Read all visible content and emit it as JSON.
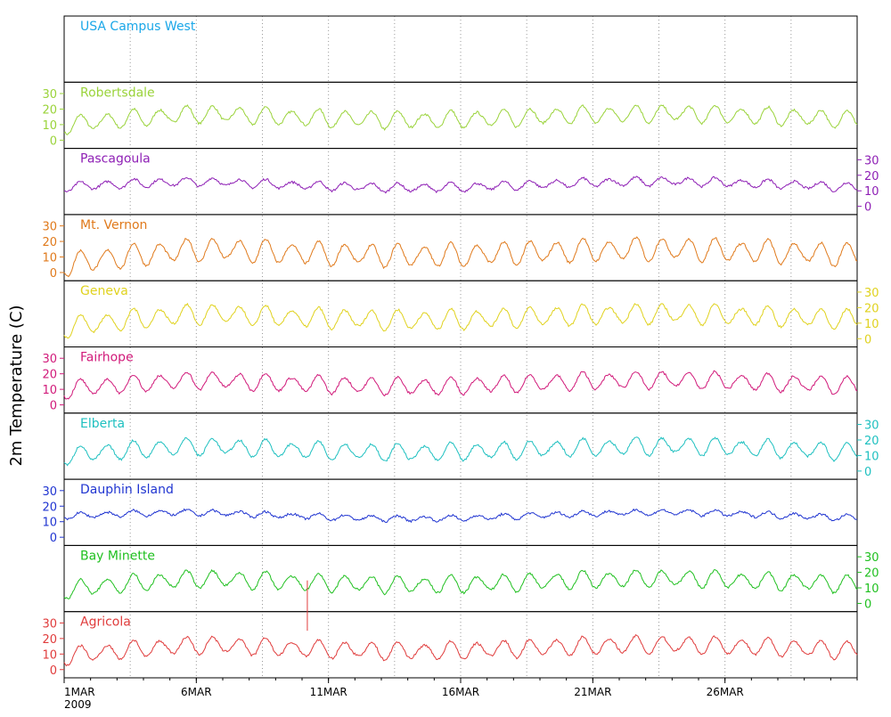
{
  "chart_data": {
    "type": "line",
    "ylabel": "2m Temperature (C)",
    "xlim": [
      "2009-03-01",
      "2009-03-31"
    ],
    "ylim": [
      -3,
      35
    ],
    "ticks": [
      0,
      10,
      20,
      30
    ],
    "x_ticks": [
      {
        "day": 1,
        "label": "1MAR",
        "sublabel": "2009"
      },
      {
        "day": 6,
        "label": "6MAR"
      },
      {
        "day": 11,
        "label": "11MAR"
      },
      {
        "day": 16,
        "label": "16MAR"
      },
      {
        "day": 21,
        "label": "21MAR"
      },
      {
        "day": 26,
        "label": "26MAR"
      }
    ],
    "grid": true,
    "panels": [
      {
        "name": "USA Campus West",
        "color": "#1aa7e8",
        "has_data": false
      },
      {
        "name": "Robertsdale",
        "color": "#9ad33a",
        "axis_side": "left",
        "base": 19,
        "amp": 6,
        "warm": 0.5
      },
      {
        "name": "Pascagoula",
        "color": "#8e1fb5",
        "axis_side": "right",
        "base": 18,
        "amp": 3,
        "warm": 0.2
      },
      {
        "name": "Mt. Vernon",
        "color": "#e07a1c",
        "axis_side": "left",
        "base": 17,
        "amp": 8,
        "warm": 0.7
      },
      {
        "name": "Geneva",
        "color": "#e0d21e",
        "axis_side": "right",
        "base": 18,
        "amp": 7,
        "warm": 0.6
      },
      {
        "name": "Fairhope",
        "color": "#d11a7a",
        "axis_side": "left",
        "base": 18,
        "amp": 6,
        "warm": 0.4
      },
      {
        "name": "Elberta",
        "color": "#1ec0c0",
        "axis_side": "right",
        "base": 18,
        "amp": 6,
        "warm": 0.4
      },
      {
        "name": "Dauphin Island",
        "color": "#2035d1",
        "axis_side": "left",
        "base": 18,
        "amp": 2,
        "warm": 0.1
      },
      {
        "name": "Bay Minette",
        "color": "#20c020",
        "axis_side": "right",
        "base": 18,
        "amp": 6,
        "warm": 0.5
      },
      {
        "name": "Agricola",
        "color": "#e03c3c",
        "axis_side": "left",
        "base": 18,
        "amp": 6,
        "warm": 0.5
      }
    ]
  }
}
